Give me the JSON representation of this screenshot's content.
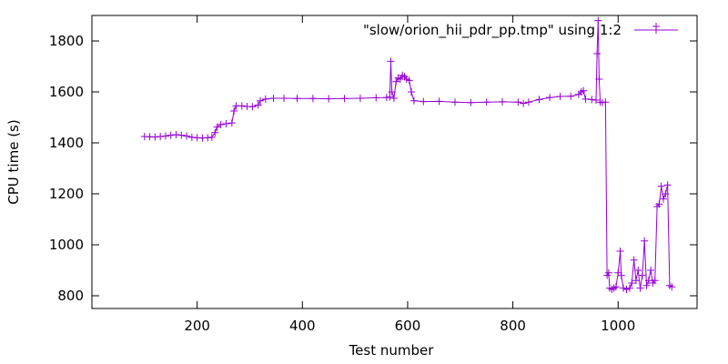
{
  "chart_data": {
    "type": "line",
    "title": "",
    "xlabel": "Test number",
    "ylabel": "CPU time (s)",
    "xlim": [
      0,
      1150
    ],
    "ylim": [
      750,
      1900
    ],
    "xticks": [
      200,
      400,
      600,
      800,
      1000
    ],
    "yticks": [
      800,
      1000,
      1200,
      1400,
      1600,
      1800
    ],
    "grid": false,
    "legend_position": "top-right",
    "marker": "plus",
    "series": [
      {
        "name": "\"slow/orion_hii_pdr_pp.tmp\" using 1:2",
        "color": "#9400d3",
        "points": [
          [
            100,
            1425
          ],
          [
            110,
            1424
          ],
          [
            120,
            1423
          ],
          [
            130,
            1425
          ],
          [
            140,
            1427
          ],
          [
            150,
            1430
          ],
          [
            160,
            1432
          ],
          [
            170,
            1430
          ],
          [
            180,
            1427
          ],
          [
            190,
            1422
          ],
          [
            200,
            1420
          ],
          [
            210,
            1419
          ],
          [
            220,
            1420
          ],
          [
            228,
            1422
          ],
          [
            234,
            1440
          ],
          [
            238,
            1462
          ],
          [
            245,
            1472
          ],
          [
            255,
            1475
          ],
          [
            266,
            1478
          ],
          [
            270,
            1525
          ],
          [
            274,
            1545
          ],
          [
            285,
            1545
          ],
          [
            295,
            1543
          ],
          [
            305,
            1542
          ],
          [
            316,
            1548
          ],
          [
            320,
            1565
          ],
          [
            330,
            1572
          ],
          [
            345,
            1575
          ],
          [
            365,
            1575
          ],
          [
            390,
            1574
          ],
          [
            420,
            1574
          ],
          [
            450,
            1573
          ],
          [
            480,
            1574
          ],
          [
            510,
            1575
          ],
          [
            540,
            1577
          ],
          [
            560,
            1578
          ],
          [
            566,
            1580
          ],
          [
            568,
            1720
          ],
          [
            570,
            1600
          ],
          [
            574,
            1575
          ],
          [
            578,
            1640
          ],
          [
            582,
            1655
          ],
          [
            586,
            1650
          ],
          [
            590,
            1665
          ],
          [
            594,
            1660
          ],
          [
            598,
            1650
          ],
          [
            603,
            1645
          ],
          [
            607,
            1600
          ],
          [
            612,
            1565
          ],
          [
            630,
            1562
          ],
          [
            660,
            1563
          ],
          [
            690,
            1560
          ],
          [
            720,
            1558
          ],
          [
            750,
            1560
          ],
          [
            780,
            1561
          ],
          [
            810,
            1560
          ],
          [
            820,
            1555
          ],
          [
            830,
            1560
          ],
          [
            850,
            1570
          ],
          [
            870,
            1578
          ],
          [
            890,
            1582
          ],
          [
            910,
            1583
          ],
          [
            925,
            1590
          ],
          [
            930,
            1600
          ],
          [
            934,
            1605
          ],
          [
            938,
            1572
          ],
          [
            950,
            1570
          ],
          [
            958,
            1568
          ],
          [
            960,
            1750
          ],
          [
            962,
            1880
          ],
          [
            964,
            1650
          ],
          [
            966,
            1560
          ],
          [
            970,
            1558
          ],
          [
            976,
            1560
          ],
          [
            979,
            880
          ],
          [
            982,
            890
          ],
          [
            984,
            830
          ],
          [
            988,
            825
          ],
          [
            992,
            830
          ],
          [
            996,
            835
          ],
          [
            1000,
            890
          ],
          [
            1004,
            975
          ],
          [
            1006,
            880
          ],
          [
            1010,
            830
          ],
          [
            1016,
            825
          ],
          [
            1022,
            830
          ],
          [
            1026,
            850
          ],
          [
            1030,
            940
          ],
          [
            1034,
            860
          ],
          [
            1038,
            900
          ],
          [
            1042,
            830
          ],
          [
            1046,
            880
          ],
          [
            1050,
            1015
          ],
          [
            1054,
            840
          ],
          [
            1058,
            860
          ],
          [
            1062,
            900
          ],
          [
            1066,
            850
          ],
          [
            1070,
            860
          ],
          [
            1074,
            1150
          ],
          [
            1078,
            1160
          ],
          [
            1082,
            1230
          ],
          [
            1086,
            1180
          ],
          [
            1090,
            1200
          ],
          [
            1094,
            1235
          ],
          [
            1098,
            840
          ],
          [
            1102,
            835
          ]
        ]
      }
    ]
  }
}
